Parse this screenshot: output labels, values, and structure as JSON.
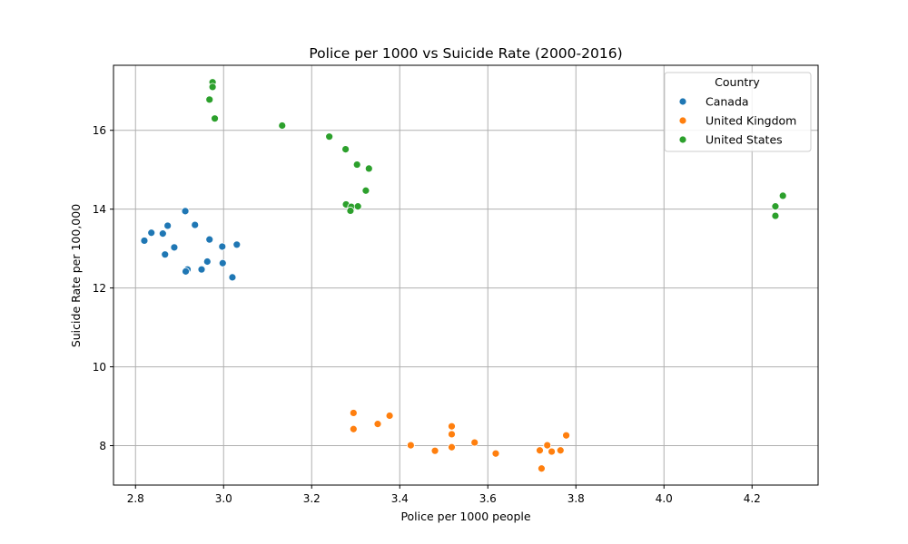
{
  "chart_data": {
    "type": "scatter",
    "title": "Police per 1000 vs Suicide Rate (2000-2016)",
    "xlabel": "Police per 1000 people",
    "ylabel": "Suicide Rate per 100,000",
    "xlim": [
      2.75,
      4.35
    ],
    "ylim": [
      7.0,
      17.65
    ],
    "xticks": [
      2.8,
      3.0,
      3.2,
      3.4,
      3.6,
      3.8,
      4.0,
      4.2
    ],
    "xtick_labels": [
      "2.8",
      "3.0",
      "3.2",
      "3.4",
      "3.6",
      "3.8",
      "4.0",
      "4.2"
    ],
    "yticks": [
      8,
      10,
      12,
      14,
      16
    ],
    "ytick_labels": [
      "8",
      "10",
      "12",
      "14",
      "16"
    ],
    "grid": true,
    "legend": {
      "title": "Country",
      "placement": "top-right"
    },
    "series": [
      {
        "name": "Canada",
        "color": "#1f77b4",
        "points": [
          [
            2.82,
            13.2
          ],
          [
            2.836,
            13.4
          ],
          [
            2.862,
            13.38
          ],
          [
            2.873,
            13.58
          ],
          [
            2.867,
            12.85
          ],
          [
            2.888,
            13.03
          ],
          [
            2.913,
            13.95
          ],
          [
            2.918,
            12.47
          ],
          [
            2.914,
            12.42
          ],
          [
            2.935,
            13.6
          ],
          [
            2.95,
            12.47
          ],
          [
            2.963,
            12.67
          ],
          [
            2.968,
            13.23
          ],
          [
            2.997,
            13.05
          ],
          [
            2.998,
            12.63
          ],
          [
            3.02,
            12.27
          ],
          [
            3.03,
            13.1
          ]
        ]
      },
      {
        "name": "United Kingdom",
        "color": "#ff7f0e",
        "points": [
          [
            3.295,
            8.83
          ],
          [
            3.295,
            8.42
          ],
          [
            3.35,
            8.55
          ],
          [
            3.377,
            8.76
          ],
          [
            3.425,
            8.01
          ],
          [
            3.48,
            7.87
          ],
          [
            3.518,
            8.49
          ],
          [
            3.518,
            8.29
          ],
          [
            3.518,
            7.96
          ],
          [
            3.57,
            8.08
          ],
          [
            3.618,
            7.8
          ],
          [
            3.718,
            7.88
          ],
          [
            3.722,
            7.42
          ],
          [
            3.735,
            8.01
          ],
          [
            3.745,
            7.85
          ],
          [
            3.765,
            7.88
          ],
          [
            3.778,
            8.26
          ]
        ]
      },
      {
        "name": "United States",
        "color": "#2ca02c",
        "points": [
          [
            2.975,
            17.22
          ],
          [
            2.975,
            17.1
          ],
          [
            2.968,
            16.78
          ],
          [
            2.98,
            16.3
          ],
          [
            3.133,
            16.12
          ],
          [
            3.24,
            15.84
          ],
          [
            3.277,
            15.52
          ],
          [
            3.303,
            15.13
          ],
          [
            3.33,
            15.03
          ],
          [
            3.323,
            14.47
          ],
          [
            3.278,
            14.12
          ],
          [
            3.29,
            14.06
          ],
          [
            3.305,
            14.07
          ],
          [
            3.288,
            13.96
          ],
          [
            4.253,
            14.07
          ],
          [
            4.253,
            13.83
          ],
          [
            4.27,
            14.34
          ]
        ]
      }
    ]
  }
}
